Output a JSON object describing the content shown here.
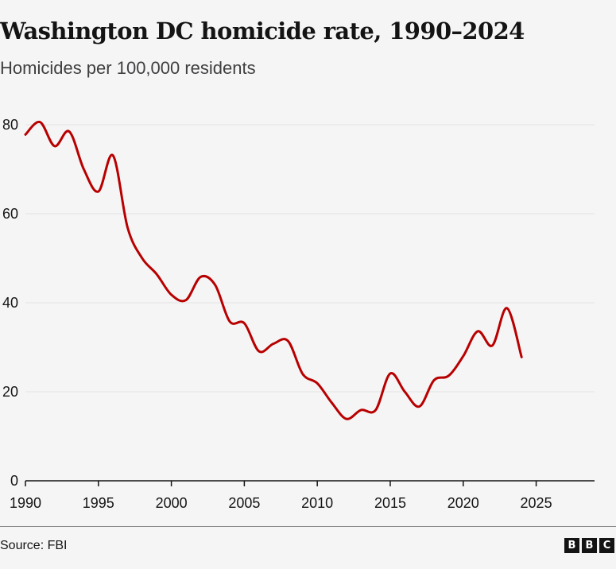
{
  "chart_data": {
    "type": "line",
    "title": "Washington DC homicide rate, 1990–2024",
    "subtitle": "Homicides per 100,000 residents",
    "xlabel": "",
    "ylabel": "",
    "xlim": [
      1990,
      2029
    ],
    "ylim": [
      0,
      80
    ],
    "grid": true,
    "x_ticks": [
      1990,
      1995,
      2000,
      2005,
      2010,
      2015,
      2020,
      2025
    ],
    "y_ticks": [
      0,
      20,
      40,
      60,
      80
    ],
    "series": [
      {
        "name": "Homicide rate",
        "color": "#b80000",
        "x": [
          1990,
          1991,
          1992,
          1993,
          1994,
          1995,
          1996,
          1997,
          1998,
          1999,
          2000,
          2001,
          2002,
          2003,
          2004,
          2005,
          2006,
          2007,
          2008,
          2009,
          2010,
          2011,
          2012,
          2013,
          2014,
          2015,
          2016,
          2017,
          2018,
          2019,
          2020,
          2021,
          2022,
          2023,
          2024
        ],
        "values": [
          77.8,
          80.6,
          75.2,
          78.5,
          70.0,
          65.0,
          73.1,
          56.9,
          50.0,
          46.4,
          41.8,
          40.6,
          45.8,
          44.0,
          35.8,
          35.4,
          29.1,
          30.8,
          31.4,
          24.0,
          21.9,
          17.5,
          13.9,
          15.9,
          15.9,
          24.1,
          20.0,
          16.7,
          22.6,
          23.6,
          28.0,
          33.6,
          30.4,
          38.8,
          27.8
        ]
      }
    ],
    "source": "Source: FBI"
  },
  "logo": {
    "letters": [
      "B",
      "B",
      "C"
    ]
  },
  "colors": {
    "line": "#b80000",
    "grid": "#e2e2e2",
    "axis": "#141414",
    "background": "#f5f5f5"
  }
}
